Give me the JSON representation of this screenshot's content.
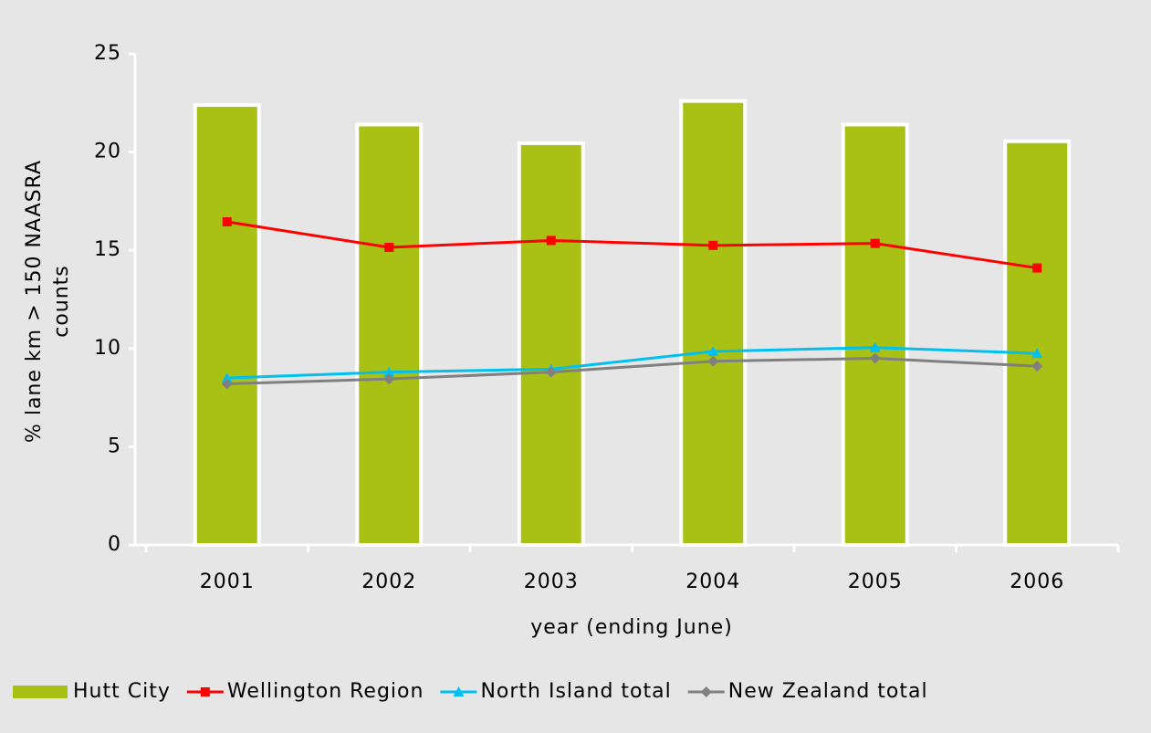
{
  "chart_data": {
    "type": "bar_line",
    "x_label": "year (ending June)",
    "y_label": [
      "% lane km > 150 NAASRA",
      "counts"
    ],
    "categories": [
      "2001",
      "2002",
      "2003",
      "2004",
      "2005",
      "2006"
    ],
    "series": [
      {
        "name": "Hutt City",
        "type": "bar",
        "color": "#a9c015",
        "values": [
          22.4,
          21.4,
          20.45,
          22.6,
          21.4,
          20.55
        ]
      },
      {
        "name": "Wellington Region",
        "type": "line",
        "marker": "square",
        "color": "#ff0000",
        "values": [
          16.45,
          15.15,
          15.5,
          15.25,
          15.35,
          14.1
        ]
      },
      {
        "name": "North Island total",
        "type": "line",
        "marker": "triangle",
        "color": "#00c0f0",
        "values": [
          8.5,
          8.8,
          8.95,
          9.85,
          10.05,
          9.75
        ]
      },
      {
        "name": "New Zealand total",
        "type": "line",
        "marker": "diamond",
        "color": "#808080",
        "values": [
          8.2,
          8.45,
          8.8,
          9.35,
          9.5,
          9.1
        ]
      }
    ],
    "ylim": [
      0,
      25
    ],
    "yticks": [
      0,
      5,
      10,
      15,
      20,
      25
    ]
  }
}
